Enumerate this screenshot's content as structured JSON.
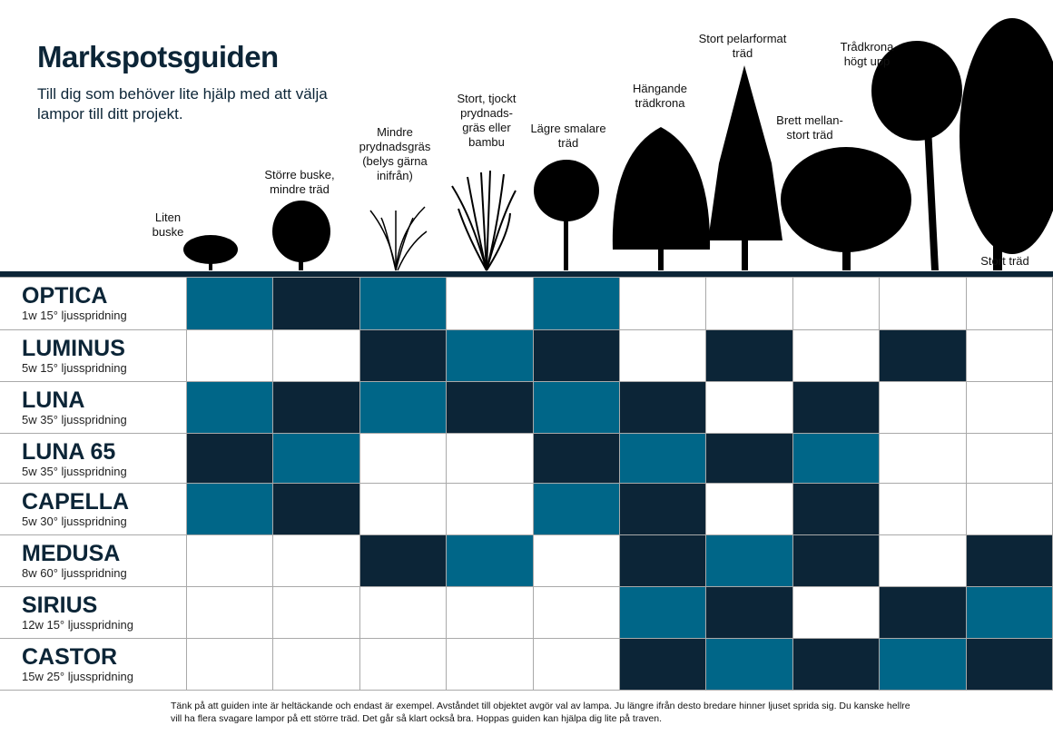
{
  "title": "Markspotsguiden",
  "subtitle": "Till dig som behöver lite hjälp med att välja lampor till ditt projekt.",
  "colors": {
    "dark": "#0c2537",
    "teal": "#006688",
    "white": "#ffffff"
  },
  "columns": [
    {
      "label": "Liten\nbuske",
      "icon": "small-bush-icon"
    },
    {
      "label": "Större buske,\nmindre träd",
      "icon": "large-bush-icon"
    },
    {
      "label": "Mindre\nprydnadsgräs\n(belys gärna\ninifrån)",
      "icon": "small-grass-icon"
    },
    {
      "label": "Stort, tjockt\nprydnads-\ngräs eller\nbambu",
      "icon": "bamboo-icon"
    },
    {
      "label": "Lägre smalare\nträd",
      "icon": "narrow-tree-icon"
    },
    {
      "label": "Hängande\nträdkrona",
      "icon": "weeping-tree-icon"
    },
    {
      "label": "Stort pelarformat\nträd",
      "icon": "columnar-tree-icon"
    },
    {
      "label": "Brett mellan-\nstort träd",
      "icon": "broad-tree-icon"
    },
    {
      "label": "Trådkrona\nhögt upp",
      "icon": "high-crown-tree-icon"
    },
    {
      "label": "Stort träd",
      "icon": "large-tree-icon"
    }
  ],
  "products": [
    {
      "name": "OPTICA",
      "spec": "1w 15° ljusspridning",
      "cells": "TDTWTWWWWW"
    },
    {
      "name": "LUMINUS",
      "spec": "5w 15° ljusspridning",
      "cells": "WWDTDWDWDW"
    },
    {
      "name": "LUNA",
      "spec": "5w 35° ljusspridning",
      "cells": "TDTDTDWDWW"
    },
    {
      "name": "LUNA 65",
      "spec": "5w 35° ljusspridning",
      "cells": "DTWWDTDTWW"
    },
    {
      "name": "CAPELLA",
      "spec": "5w 30° ljusspridning",
      "cells": "TDWWTDWDWW"
    },
    {
      "name": "MEDUSA",
      "spec": "8w 60° ljusspridning",
      "cells": "WWDTWDTDWD"
    },
    {
      "name": "SIRIUS",
      "spec": "12w 15° ljusspridning",
      "cells": "WWWWWTDWDT"
    },
    {
      "name": "CASTOR",
      "spec": "15w 25° ljusspridning",
      "cells": "WWWWWDTDTD"
    }
  ],
  "footnote": "Tänk på att guiden inte är heltäckande och endast är exempel. Avståndet till objektet avgör val av lampa. Ju längre ifrån desto bredare hinner ljuset sprida sig. Du kanske hellre vill ha flera svagare lampor på ett större träd. Det går så klart också bra. Hoppas guiden kan hjälpa dig lite på traven."
}
